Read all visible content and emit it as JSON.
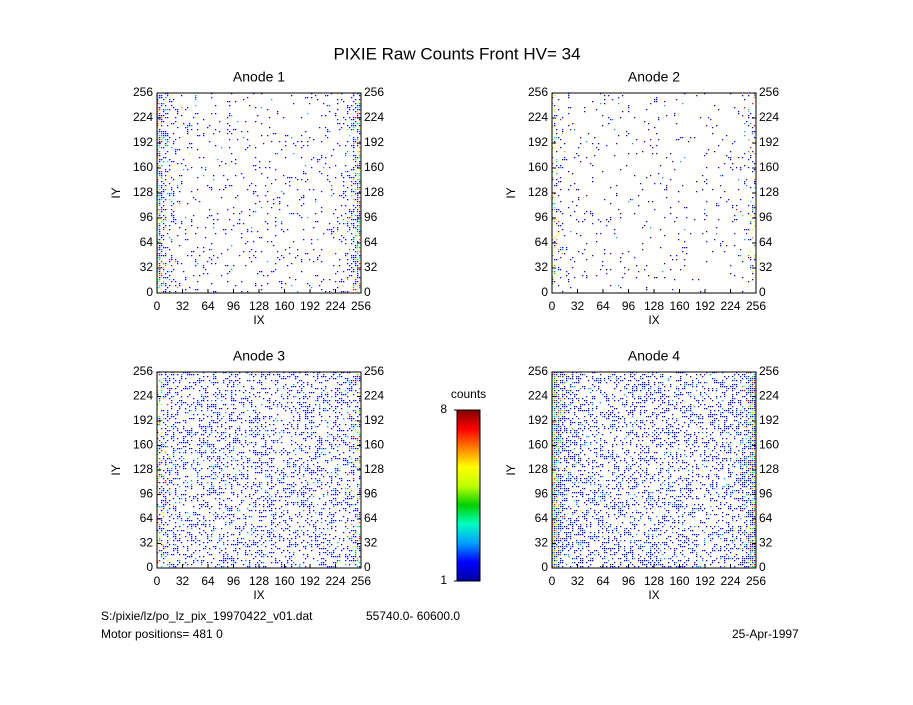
{
  "title": "PIXIE Raw Counts Front HV= 34",
  "chart_data": [
    {
      "type": "heatmap",
      "title": "Anode 1",
      "xlabel": "IX",
      "ylabel": "IY",
      "xlim": [
        0,
        256
      ],
      "ylim": [
        0,
        256
      ],
      "xticks": [
        0,
        32,
        64,
        96,
        128,
        160,
        192,
        224,
        256
      ],
      "yticks": [
        0,
        32,
        64,
        96,
        128,
        160,
        192,
        224,
        256
      ]
    },
    {
      "type": "heatmap",
      "title": "Anode 2",
      "xlabel": "IX",
      "ylabel": "IY",
      "xlim": [
        0,
        256
      ],
      "ylim": [
        0,
        256
      ],
      "xticks": [
        0,
        32,
        64,
        96,
        128,
        160,
        192,
        224,
        256
      ],
      "yticks": [
        0,
        32,
        64,
        96,
        128,
        160,
        192,
        224,
        256
      ]
    },
    {
      "type": "heatmap",
      "title": "Anode 3",
      "xlabel": "IX",
      "ylabel": "IY",
      "xlim": [
        0,
        256
      ],
      "ylim": [
        0,
        256
      ],
      "xticks": [
        0,
        32,
        64,
        96,
        128,
        160,
        192,
        224,
        256
      ],
      "yticks": [
        0,
        32,
        64,
        96,
        128,
        160,
        192,
        224,
        256
      ]
    },
    {
      "type": "heatmap",
      "title": "Anode 4",
      "xlabel": "IX",
      "ylabel": "IY",
      "xlim": [
        0,
        256
      ],
      "ylim": [
        0,
        256
      ],
      "xticks": [
        0,
        32,
        64,
        96,
        128,
        160,
        192,
        224,
        256
      ],
      "yticks": [
        0,
        32,
        64,
        96,
        128,
        160,
        192,
        224,
        256
      ]
    }
  ],
  "colorbar": {
    "label": "counts",
    "lim": [
      1,
      8
    ],
    "ticks": [
      1,
      8
    ],
    "colors": [
      "#0000a0",
      "#0000ff",
      "#00a0ff",
      "#00ffc0",
      "#00d000",
      "#c0ff00",
      "#ffff00",
      "#ff8000",
      "#ff0000",
      "#800000"
    ]
  },
  "footer": {
    "file": "S:/pixie/lz/po_lz_pix_19970422_v01.dat",
    "range": "55740.0- 60600.0",
    "motor": "Motor positions= 481 0",
    "date": "25-Apr-1997"
  }
}
